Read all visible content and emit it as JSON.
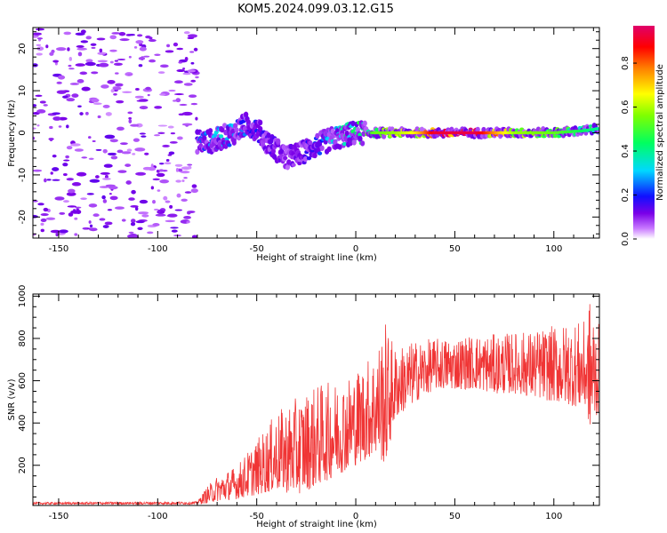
{
  "figure": {
    "title": "KOM5.2024.099.03.12.G15"
  },
  "chart_data": [
    {
      "type": "heatmap",
      "title": "KOM5.2024.099.03.12.G15",
      "xlabel": "Height of straight line (km)",
      "ylabel": "Frequency (Hz)",
      "xlim": [
        -163,
        123
      ],
      "ylim": [
        -25,
        25
      ],
      "x_ticks": [
        -150,
        -100,
        -50,
        0,
        50,
        100
      ],
      "y_ticks": [
        -20,
        -10,
        0,
        10,
        20
      ],
      "colorbar": {
        "label": "Normalized spectral amplitude",
        "range": [
          0,
          0.97
        ],
        "ticks": [
          0.0,
          0.2,
          0.4,
          0.6,
          0.8
        ],
        "colormap": "rainbow"
      },
      "ridge": {
        "description_points_x": [
          -80,
          -72,
          -62,
          -55,
          -50,
          -45,
          -40,
          -35,
          -28,
          -20,
          -12,
          -5,
          0,
          10,
          20,
          30,
          40,
          60,
          80,
          100,
          115,
          123
        ],
        "frequency_y": [
          -2,
          -2,
          0,
          2,
          1,
          -2,
          -4,
          -6,
          -5,
          -3,
          -1.5,
          -0.5,
          0,
          0,
          0,
          0,
          0,
          0,
          0,
          0,
          0.5,
          1
        ],
        "amplitude": [
          0.2,
          0.35,
          0.3,
          0.25,
          0.2,
          0.15,
          0.15,
          0.1,
          0.12,
          0.25,
          0.35,
          0.4,
          0.45,
          0.55,
          0.6,
          0.7,
          0.95,
          0.97,
          0.6,
          0.55,
          0.45,
          0.4
        ]
      },
      "noise_region_x": [
        -163,
        -80
      ],
      "grid": false
    },
    {
      "type": "line",
      "xlabel": "Height of straight line (km)",
      "ylabel": "SNR (v/v)",
      "xlim": [
        -163,
        123
      ],
      "ylim": [
        10,
        1010
      ],
      "x_ticks": [
        -150,
        -100,
        -50,
        0,
        50,
        100
      ],
      "y_ticks": [
        200,
        400,
        600,
        800,
        1000
      ],
      "series": [
        {
          "color": "#f03535",
          "envelope_x": [
            -163,
            -80,
            -75,
            -70,
            -60,
            -50,
            -40,
            -30,
            -20,
            -10,
            0,
            10,
            15,
            20,
            30,
            40,
            50,
            60,
            70,
            80,
            90,
            100,
            110,
            117,
            118,
            123
          ],
          "envelope_low": [
            15,
            15,
            20,
            30,
            40,
            60,
            80,
            60,
            100,
            150,
            200,
            250,
            200,
            420,
            500,
            560,
            560,
            560,
            540,
            540,
            520,
            500,
            480,
            460,
            350,
            460
          ],
          "envelope_high": [
            25,
            28,
            100,
            150,
            200,
            320,
            450,
            520,
            580,
            600,
            650,
            750,
            880,
            760,
            790,
            800,
            810,
            820,
            820,
            830,
            840,
            860,
            880,
            880,
            1000,
            860
          ]
        }
      ],
      "grid": false
    }
  ]
}
